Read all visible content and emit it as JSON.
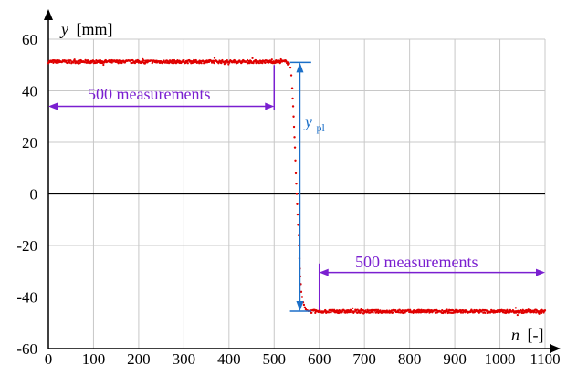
{
  "chart_data": {
    "type": "scatter",
    "x_axis": {
      "label_var": "n",
      "label_unit": "[-]",
      "range": [
        0,
        1100
      ],
      "ticks": [
        0,
        100,
        200,
        300,
        400,
        500,
        600,
        700,
        800,
        900,
        1000,
        1100
      ]
    },
    "y_axis": {
      "label_var": "y",
      "label_unit": "[mm]",
      "range": [
        -60,
        60
      ],
      "ticks": [
        -60,
        -40,
        -20,
        0,
        20,
        40,
        60
      ]
    },
    "grid": true,
    "series": [
      {
        "color": "#e00000",
        "segments": [
          {
            "x_start": 0,
            "x_end": 530,
            "y_level": 51.3,
            "noise": 0.6
          },
          {
            "x_start": 580,
            "x_end": 1100,
            "y_level": -45.6,
            "noise": 0.6
          }
        ],
        "transition": [
          [
            530,
            51
          ],
          [
            533,
            50.5
          ],
          [
            536,
            49
          ],
          [
            538,
            46
          ],
          [
            540,
            41
          ],
          [
            541,
            37
          ],
          [
            542,
            34
          ],
          [
            543,
            30
          ],
          [
            544,
            26
          ],
          [
            545,
            22
          ],
          [
            546,
            18
          ],
          [
            547,
            13
          ],
          [
            548,
            8
          ],
          [
            549,
            4
          ],
          [
            550,
            0
          ],
          [
            551,
            -4
          ],
          [
            552,
            -8
          ],
          [
            553,
            -12
          ],
          [
            554,
            -16
          ],
          [
            555,
            -20
          ],
          [
            556,
            -25
          ],
          [
            557,
            -29
          ],
          [
            558,
            -32
          ],
          [
            559,
            -35
          ],
          [
            560,
            -38
          ],
          [
            562,
            -40
          ],
          [
            564,
            -42
          ],
          [
            566,
            -43
          ],
          [
            568,
            -44
          ],
          [
            570,
            -44.8
          ],
          [
            573,
            -45.2
          ],
          [
            576,
            -45.4
          ]
        ]
      }
    ],
    "annotations": {
      "left_measure": {
        "label": "500 measurements",
        "x_from": 0,
        "x_to": 500,
        "y": 34,
        "color": "#7a1fd0"
      },
      "right_measure": {
        "label": "500 measurements",
        "x_from": 600,
        "x_to": 1100,
        "y": -30.5,
        "color": "#7a1fd0"
      },
      "ypl": {
        "symbol": "y",
        "subscript": "pl",
        "x": 557,
        "y_top": 51,
        "y_bottom": -45.5,
        "color": "#1b6fc8"
      }
    },
    "zero_line": 0
  }
}
